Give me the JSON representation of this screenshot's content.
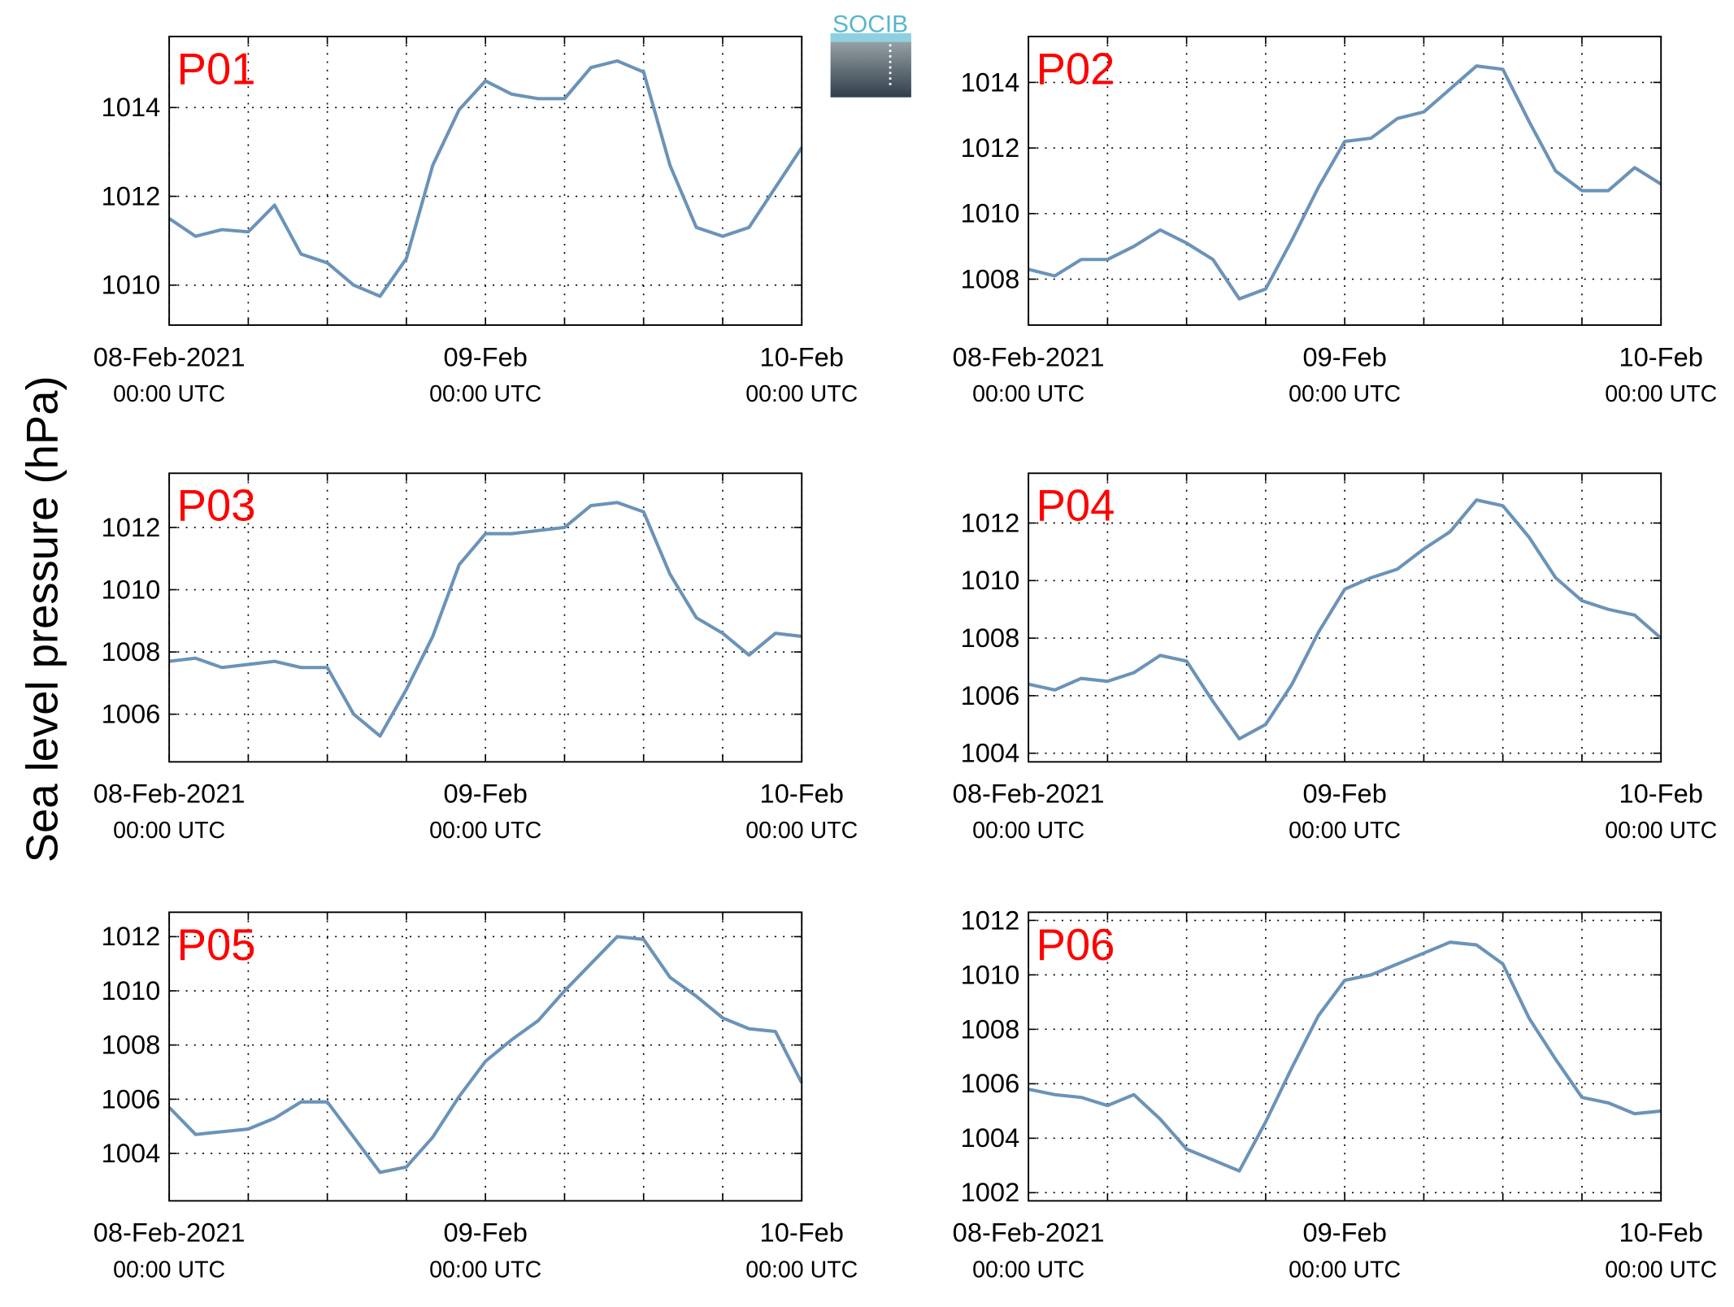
{
  "ylabel": "Sea level pressure (hPa)",
  "logo": "SOCIB",
  "chart_data": [
    {
      "type": "line",
      "title": "P01",
      "color": "#6b93b8",
      "grid": true,
      "x": [
        "2021-02-08T00:00",
        "2021-02-08T02:00",
        "2021-02-08T04:00",
        "2021-02-08T06:00",
        "2021-02-08T08:00",
        "2021-02-08T10:00",
        "2021-02-08T12:00",
        "2021-02-08T14:00",
        "2021-02-08T16:00",
        "2021-02-08T18:00",
        "2021-02-08T20:00",
        "2021-02-08T22:00",
        "2021-02-09T00:00",
        "2021-02-09T02:00",
        "2021-02-09T04:00",
        "2021-02-09T06:00",
        "2021-02-09T08:00",
        "2021-02-09T10:00",
        "2021-02-09T12:00",
        "2021-02-09T14:00",
        "2021-02-09T16:00",
        "2021-02-09T18:00",
        "2021-02-09T20:00",
        "2021-02-09T22:00",
        "2021-02-10T00:00"
      ],
      "values": [
        1011.5,
        1011.1,
        1011.25,
        1011.2,
        1011.8,
        1010.7,
        1010.5,
        1010.0,
        1009.75,
        1010.6,
        1012.7,
        1013.95,
        1014.6,
        1014.3,
        1014.2,
        1014.2,
        1014.9,
        1015.05,
        1014.8,
        1012.7,
        1011.3,
        1011.1,
        1011.3,
        1012.2,
        1013.1
      ],
      "xlim": [
        "2021-02-08T00:00",
        "2021-02-10T00:00"
      ],
      "xticks": [
        {
          "value": "2021-02-08T00:00",
          "label": "08-Feb-2021",
          "sublabel": "00:00 UTC"
        },
        {
          "value": "2021-02-08T06:00",
          "label": null
        },
        {
          "value": "2021-02-08T12:00",
          "label": null
        },
        {
          "value": "2021-02-08T18:00",
          "label": null
        },
        {
          "value": "2021-02-09T00:00",
          "label": "09-Feb",
          "sublabel": "00:00 UTC"
        },
        {
          "value": "2021-02-09T06:00",
          "label": null
        },
        {
          "value": "2021-02-09T12:00",
          "label": null
        },
        {
          "value": "2021-02-09T18:00",
          "label": null
        },
        {
          "value": "2021-02-10T00:00",
          "label": "10-Feb",
          "sublabel": "00:00 UTC"
        }
      ],
      "ylim": [
        1009.1,
        1015.6
      ],
      "yticks": [
        1010,
        1012,
        1014
      ]
    },
    {
      "type": "line",
      "title": "P02",
      "color": "#6b93b8",
      "grid": true,
      "x": [
        "2021-02-08T00:00",
        "2021-02-08T02:00",
        "2021-02-08T04:00",
        "2021-02-08T06:00",
        "2021-02-08T08:00",
        "2021-02-08T10:00",
        "2021-02-08T12:00",
        "2021-02-08T14:00",
        "2021-02-08T16:00",
        "2021-02-08T18:00",
        "2021-02-08T20:00",
        "2021-02-08T22:00",
        "2021-02-09T00:00",
        "2021-02-09T02:00",
        "2021-02-09T04:00",
        "2021-02-09T06:00",
        "2021-02-09T08:00",
        "2021-02-09T10:00",
        "2021-02-09T12:00",
        "2021-02-09T14:00",
        "2021-02-09T16:00",
        "2021-02-09T18:00",
        "2021-02-09T20:00",
        "2021-02-09T22:00",
        "2021-02-10T00:00"
      ],
      "values": [
        1008.3,
        1008.1,
        1008.6,
        1008.6,
        1009.0,
        1009.5,
        1009.1,
        1008.6,
        1007.4,
        1007.7,
        1009.2,
        1010.8,
        1012.2,
        1012.3,
        1012.9,
        1013.1,
        1013.8,
        1014.5,
        1014.4,
        1012.8,
        1011.3,
        1010.7,
        1010.7,
        1011.4,
        1010.9
      ],
      "xlim": [
        "2021-02-08T00:00",
        "2021-02-10T00:00"
      ],
      "xticks": [
        {
          "value": "2021-02-08T00:00",
          "label": "08-Feb-2021",
          "sublabel": "00:00 UTC"
        },
        {
          "value": "2021-02-08T06:00",
          "label": null
        },
        {
          "value": "2021-02-08T12:00",
          "label": null
        },
        {
          "value": "2021-02-08T18:00",
          "label": null
        },
        {
          "value": "2021-02-09T00:00",
          "label": "09-Feb",
          "sublabel": "00:00 UTC"
        },
        {
          "value": "2021-02-09T06:00",
          "label": null
        },
        {
          "value": "2021-02-09T12:00",
          "label": null
        },
        {
          "value": "2021-02-09T18:00",
          "label": null
        },
        {
          "value": "2021-02-10T00:00",
          "label": "10-Feb",
          "sublabel": "00:00 UTC"
        }
      ],
      "ylim": [
        1006.6,
        1015.4
      ],
      "yticks": [
        1008,
        1010,
        1012,
        1014
      ]
    },
    {
      "type": "line",
      "title": "P03",
      "color": "#6b93b8",
      "grid": true,
      "x": [
        "2021-02-08T00:00",
        "2021-02-08T02:00",
        "2021-02-08T04:00",
        "2021-02-08T06:00",
        "2021-02-08T08:00",
        "2021-02-08T10:00",
        "2021-02-08T12:00",
        "2021-02-08T14:00",
        "2021-02-08T16:00",
        "2021-02-08T18:00",
        "2021-02-08T20:00",
        "2021-02-08T22:00",
        "2021-02-09T00:00",
        "2021-02-09T02:00",
        "2021-02-09T04:00",
        "2021-02-09T06:00",
        "2021-02-09T08:00",
        "2021-02-09T10:00",
        "2021-02-09T12:00",
        "2021-02-09T14:00",
        "2021-02-09T16:00",
        "2021-02-09T18:00",
        "2021-02-09T20:00",
        "2021-02-09T22:00",
        "2021-02-10T00:00"
      ],
      "values": [
        1007.7,
        1007.8,
        1007.5,
        1007.6,
        1007.7,
        1007.5,
        1007.5,
        1006.0,
        1005.3,
        1006.8,
        1008.5,
        1010.8,
        1011.8,
        1011.8,
        1011.9,
        1012.0,
        1012.7,
        1012.8,
        1012.5,
        1010.5,
        1009.1,
        1008.6,
        1007.9,
        1008.6,
        1008.5
      ],
      "xlim": [
        "2021-02-08T00:00",
        "2021-02-10T00:00"
      ],
      "xticks": [
        {
          "value": "2021-02-08T00:00",
          "label": "08-Feb-2021",
          "sublabel": "00:00 UTC"
        },
        {
          "value": "2021-02-08T06:00",
          "label": null
        },
        {
          "value": "2021-02-08T12:00",
          "label": null
        },
        {
          "value": "2021-02-08T18:00",
          "label": null
        },
        {
          "value": "2021-02-09T00:00",
          "label": "09-Feb",
          "sublabel": "00:00 UTC"
        },
        {
          "value": "2021-02-09T06:00",
          "label": null
        },
        {
          "value": "2021-02-09T12:00",
          "label": null
        },
        {
          "value": "2021-02-09T18:00",
          "label": null
        },
        {
          "value": "2021-02-10T00:00",
          "label": "10-Feb",
          "sublabel": "00:00 UTC"
        }
      ],
      "ylim": [
        1004.47,
        1013.74
      ],
      "yticks": [
        1006,
        1008,
        1010,
        1012
      ]
    },
    {
      "type": "line",
      "title": "P04",
      "color": "#6b93b8",
      "grid": true,
      "x": [
        "2021-02-08T00:00",
        "2021-02-08T02:00",
        "2021-02-08T04:00",
        "2021-02-08T06:00",
        "2021-02-08T08:00",
        "2021-02-08T10:00",
        "2021-02-08T12:00",
        "2021-02-08T14:00",
        "2021-02-08T16:00",
        "2021-02-08T18:00",
        "2021-02-08T20:00",
        "2021-02-08T22:00",
        "2021-02-09T00:00",
        "2021-02-09T02:00",
        "2021-02-09T04:00",
        "2021-02-09T06:00",
        "2021-02-09T08:00",
        "2021-02-09T10:00",
        "2021-02-09T12:00",
        "2021-02-09T14:00",
        "2021-02-09T16:00",
        "2021-02-09T18:00",
        "2021-02-09T20:00",
        "2021-02-09T22:00",
        "2021-02-10T00:00"
      ],
      "values": [
        1006.4,
        1006.2,
        1006.6,
        1006.5,
        1006.8,
        1007.4,
        1007.2,
        1005.8,
        1004.5,
        1005.0,
        1006.4,
        1008.2,
        1009.7,
        1010.1,
        1010.4,
        1011.1,
        1011.7,
        1012.8,
        1012.6,
        1011.5,
        1010.1,
        1009.3,
        1009.0,
        1008.8,
        1008.0
      ],
      "xlim": [
        "2021-02-08T00:00",
        "2021-02-10T00:00"
      ],
      "xticks": [
        {
          "value": "2021-02-08T00:00",
          "label": "08-Feb-2021",
          "sublabel": "00:00 UTC"
        },
        {
          "value": "2021-02-08T06:00",
          "label": null
        },
        {
          "value": "2021-02-08T12:00",
          "label": null
        },
        {
          "value": "2021-02-08T18:00",
          "label": null
        },
        {
          "value": "2021-02-09T00:00",
          "label": "09-Feb",
          "sublabel": "00:00 UTC"
        },
        {
          "value": "2021-02-09T06:00",
          "label": null
        },
        {
          "value": "2021-02-09T12:00",
          "label": null
        },
        {
          "value": "2021-02-09T18:00",
          "label": null
        },
        {
          "value": "2021-02-10T00:00",
          "label": "10-Feb",
          "sublabel": "00:00 UTC"
        }
      ],
      "ylim": [
        1003.7,
        1013.73
      ],
      "yticks": [
        1004,
        1006,
        1008,
        1010,
        1012
      ]
    },
    {
      "type": "line",
      "title": "P05",
      "color": "#6b93b8",
      "grid": true,
      "x": [
        "2021-02-08T00:00",
        "2021-02-08T02:00",
        "2021-02-08T04:00",
        "2021-02-08T06:00",
        "2021-02-08T08:00",
        "2021-02-08T10:00",
        "2021-02-08T12:00",
        "2021-02-08T14:00",
        "2021-02-08T16:00",
        "2021-02-08T18:00",
        "2021-02-08T20:00",
        "2021-02-08T22:00",
        "2021-02-09T00:00",
        "2021-02-09T02:00",
        "2021-02-09T04:00",
        "2021-02-09T06:00",
        "2021-02-09T08:00",
        "2021-02-09T10:00",
        "2021-02-09T12:00",
        "2021-02-09T14:00",
        "2021-02-09T16:00",
        "2021-02-09T18:00",
        "2021-02-09T20:00",
        "2021-02-09T22:00",
        "2021-02-10T00:00"
      ],
      "values": [
        1005.7,
        1004.7,
        1004.8,
        1004.9,
        1005.3,
        1005.9,
        1005.9,
        1004.6,
        1003.3,
        1003.5,
        1004.6,
        1006.1,
        1007.4,
        1008.2,
        1008.9,
        1010.0,
        1011.0,
        1012.0,
        1011.9,
        1010.5,
        1009.8,
        1009.0,
        1008.6,
        1008.5,
        1006.6
      ],
      "xlim": [
        "2021-02-08T00:00",
        "2021-02-10T00:00"
      ],
      "xticks": [
        {
          "value": "2021-02-08T00:00",
          "label": "08-Feb-2021",
          "sublabel": "00:00 UTC"
        },
        {
          "value": "2021-02-08T06:00",
          "label": null
        },
        {
          "value": "2021-02-08T12:00",
          "label": null
        },
        {
          "value": "2021-02-08T18:00",
          "label": null
        },
        {
          "value": "2021-02-09T00:00",
          "label": "09-Feb",
          "sublabel": "00:00 UTC"
        },
        {
          "value": "2021-02-09T06:00",
          "label": null
        },
        {
          "value": "2021-02-09T12:00",
          "label": null
        },
        {
          "value": "2021-02-09T18:00",
          "label": null
        },
        {
          "value": "2021-02-10T00:00",
          "label": "10-Feb",
          "sublabel": "00:00 UTC"
        }
      ],
      "ylim": [
        1002.25,
        1012.9
      ],
      "yticks": [
        1004,
        1006,
        1008,
        1010,
        1012
      ]
    },
    {
      "type": "line",
      "title": "P06",
      "color": "#6b93b8",
      "grid": true,
      "x": [
        "2021-02-08T00:00",
        "2021-02-08T02:00",
        "2021-02-08T04:00",
        "2021-02-08T06:00",
        "2021-02-08T08:00",
        "2021-02-08T10:00",
        "2021-02-08T12:00",
        "2021-02-08T14:00",
        "2021-02-08T16:00",
        "2021-02-08T18:00",
        "2021-02-08T20:00",
        "2021-02-08T22:00",
        "2021-02-09T00:00",
        "2021-02-09T02:00",
        "2021-02-09T04:00",
        "2021-02-09T06:00",
        "2021-02-09T08:00",
        "2021-02-09T10:00",
        "2021-02-09T12:00",
        "2021-02-09T14:00",
        "2021-02-09T16:00",
        "2021-02-09T18:00",
        "2021-02-09T20:00",
        "2021-02-09T22:00",
        "2021-02-10T00:00"
      ],
      "values": [
        1005.8,
        1005.6,
        1005.5,
        1005.2,
        1005.6,
        1004.7,
        1003.6,
        1003.2,
        1002.8,
        1004.6,
        1006.6,
        1008.5,
        1009.8,
        1010.0,
        1010.4,
        1010.8,
        1011.2,
        1011.1,
        1010.4,
        1008.4,
        1006.9,
        1005.5,
        1005.3,
        1004.9,
        1005.0
      ],
      "xlim": [
        "2021-02-08T00:00",
        "2021-02-10T00:00"
      ],
      "xticks": [
        {
          "value": "2021-02-08T00:00",
          "label": "08-Feb-2021",
          "sublabel": "00:00 UTC"
        },
        {
          "value": "2021-02-08T06:00",
          "label": null
        },
        {
          "value": "2021-02-08T12:00",
          "label": null
        },
        {
          "value": "2021-02-08T18:00",
          "label": null
        },
        {
          "value": "2021-02-09T00:00",
          "label": "09-Feb",
          "sublabel": "00:00 UTC"
        },
        {
          "value": "2021-02-09T06:00",
          "label": null
        },
        {
          "value": "2021-02-09T12:00",
          "label": null
        },
        {
          "value": "2021-02-09T18:00",
          "label": null
        },
        {
          "value": "2021-02-10T00:00",
          "label": "10-Feb",
          "sublabel": "00:00 UTC"
        }
      ],
      "ylim": [
        1001.7,
        1012.3
      ],
      "yticks": [
        1002,
        1004,
        1006,
        1008,
        1010,
        1012
      ]
    }
  ]
}
